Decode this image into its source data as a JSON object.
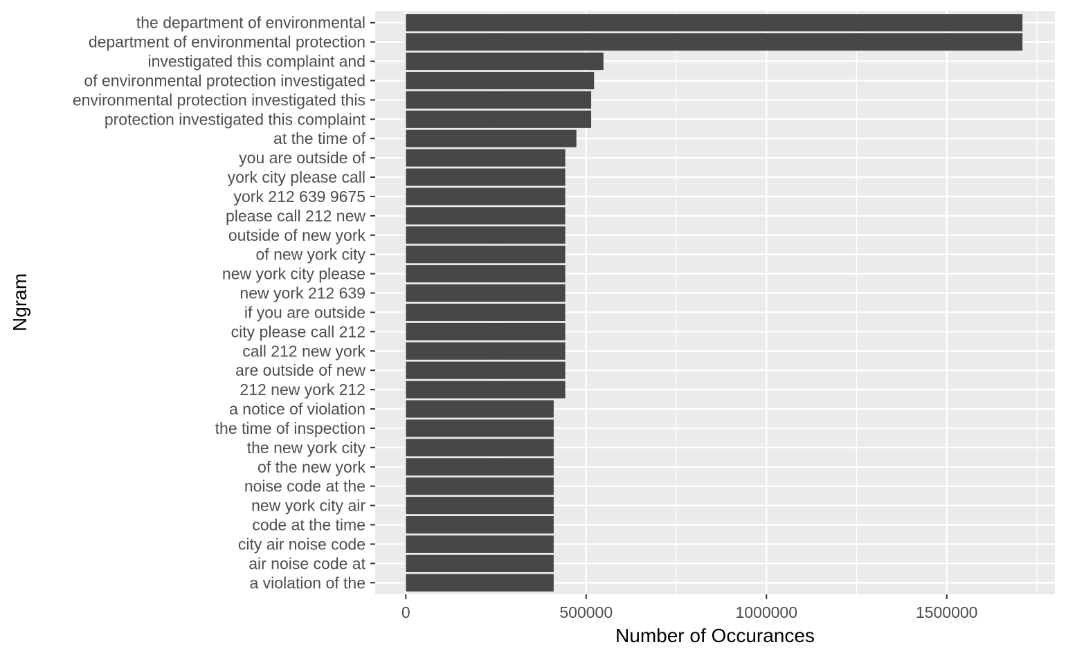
{
  "chart_data": {
    "type": "bar",
    "orientation": "horizontal",
    "xlabel": "Number of Occurances",
    "ylabel": "Ngram",
    "xlim": [
      -85000,
      1800000
    ],
    "x_ticks": [
      0,
      500000,
      1000000,
      1500000
    ],
    "x_tick_labels": [
      "0",
      "500000",
      "1000000",
      "1500000"
    ],
    "grid": true,
    "categories": [
      "the department of environmental",
      "department of environmental protection",
      "investigated this complaint and",
      "of environmental protection investigated",
      "environmental protection investigated this",
      "protection investigated this complaint",
      "at the time of",
      "you are outside of",
      "york city please call",
      "york 212 639 9675",
      "please call 212 new",
      "outside of new york",
      "of new york city",
      "new york city please",
      "new york 212 639",
      "if you are outside",
      "city please call 212",
      "call 212 new york",
      "are outside of new",
      "212 new york 212",
      "a notice of violation",
      "the time of inspection",
      "the new york city",
      "of the new york",
      "noise code at the",
      "new york city air",
      "code at the time",
      "city air noise code",
      "air noise code at",
      "a violation of the"
    ],
    "values": [
      1710000,
      1710000,
      548000,
      522000,
      514000,
      514000,
      473000,
      442000,
      442000,
      442000,
      442000,
      442000,
      442000,
      442000,
      442000,
      442000,
      442000,
      442000,
      442000,
      442000,
      410000,
      410000,
      410000,
      410000,
      410000,
      410000,
      410000,
      410000,
      410000,
      410000
    ],
    "colors": {
      "panel_background": "#ebebeb",
      "grid": "#ffffff",
      "bar_fill": "#474747",
      "tick_text": "#4d4d4d",
      "tick_mark": "#333333"
    }
  }
}
